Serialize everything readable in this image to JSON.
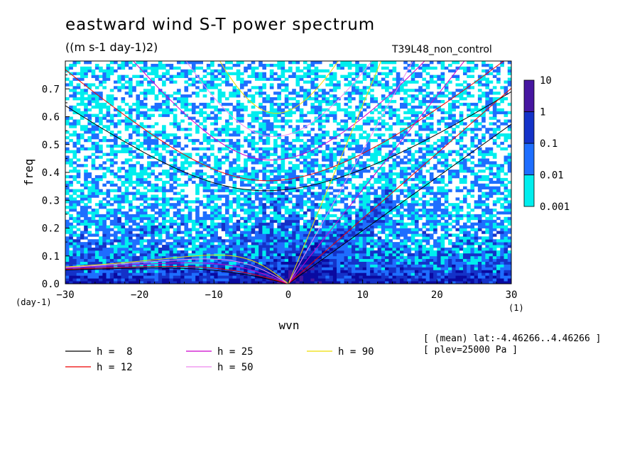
{
  "title": "eastward wind S-T power spectrum",
  "units": "((m s-1 day-1)2)",
  "run_label": "T39L48_non_control",
  "annotation_lines": [
    "[ (mean) lat:-4.46266..4.46266 ]",
    "[ plev=25000 Pa ]"
  ],
  "chart_data": {
    "type": "heatmap",
    "title": "eastward wind S-T power spectrum",
    "xlabel": "wvn",
    "ylabel": "freq",
    "x_unit": "(1)",
    "y_unit": "(day-1)",
    "xlim": [
      -30,
      30
    ],
    "ylim": [
      0,
      0.8
    ],
    "x_ticks": [
      -30,
      -20,
      -10,
      0,
      10,
      20,
      30
    ],
    "y_ticks": [
      0.0,
      0.1,
      0.2,
      0.3,
      0.4,
      0.5,
      0.6,
      0.7
    ],
    "colorbar": {
      "levels": [
        0.001,
        0.01,
        0.1,
        1,
        10
      ],
      "labels": [
        "0.001",
        "0.01",
        "0.1",
        "1",
        "10"
      ],
      "colors": [
        "#00eeee",
        "#1e6eff",
        "#1432c8",
        "#0a0aa0",
        "#4616a0"
      ]
    },
    "dispersion_curves": [
      {
        "label": "h =  8",
        "h": 8,
        "color": "#000000"
      },
      {
        "label": "h = 12",
        "h": 12,
        "color": "#ee0000"
      },
      {
        "label": "h = 25",
        "h": 25,
        "color": "#cc00cc"
      },
      {
        "label": "h = 50",
        "h": 50,
        "color": "#ee88ee"
      },
      {
        "label": "h = 90",
        "h": 90,
        "color": "#eedd00"
      }
    ],
    "grid": false,
    "legend_placement": "bottom-left"
  }
}
